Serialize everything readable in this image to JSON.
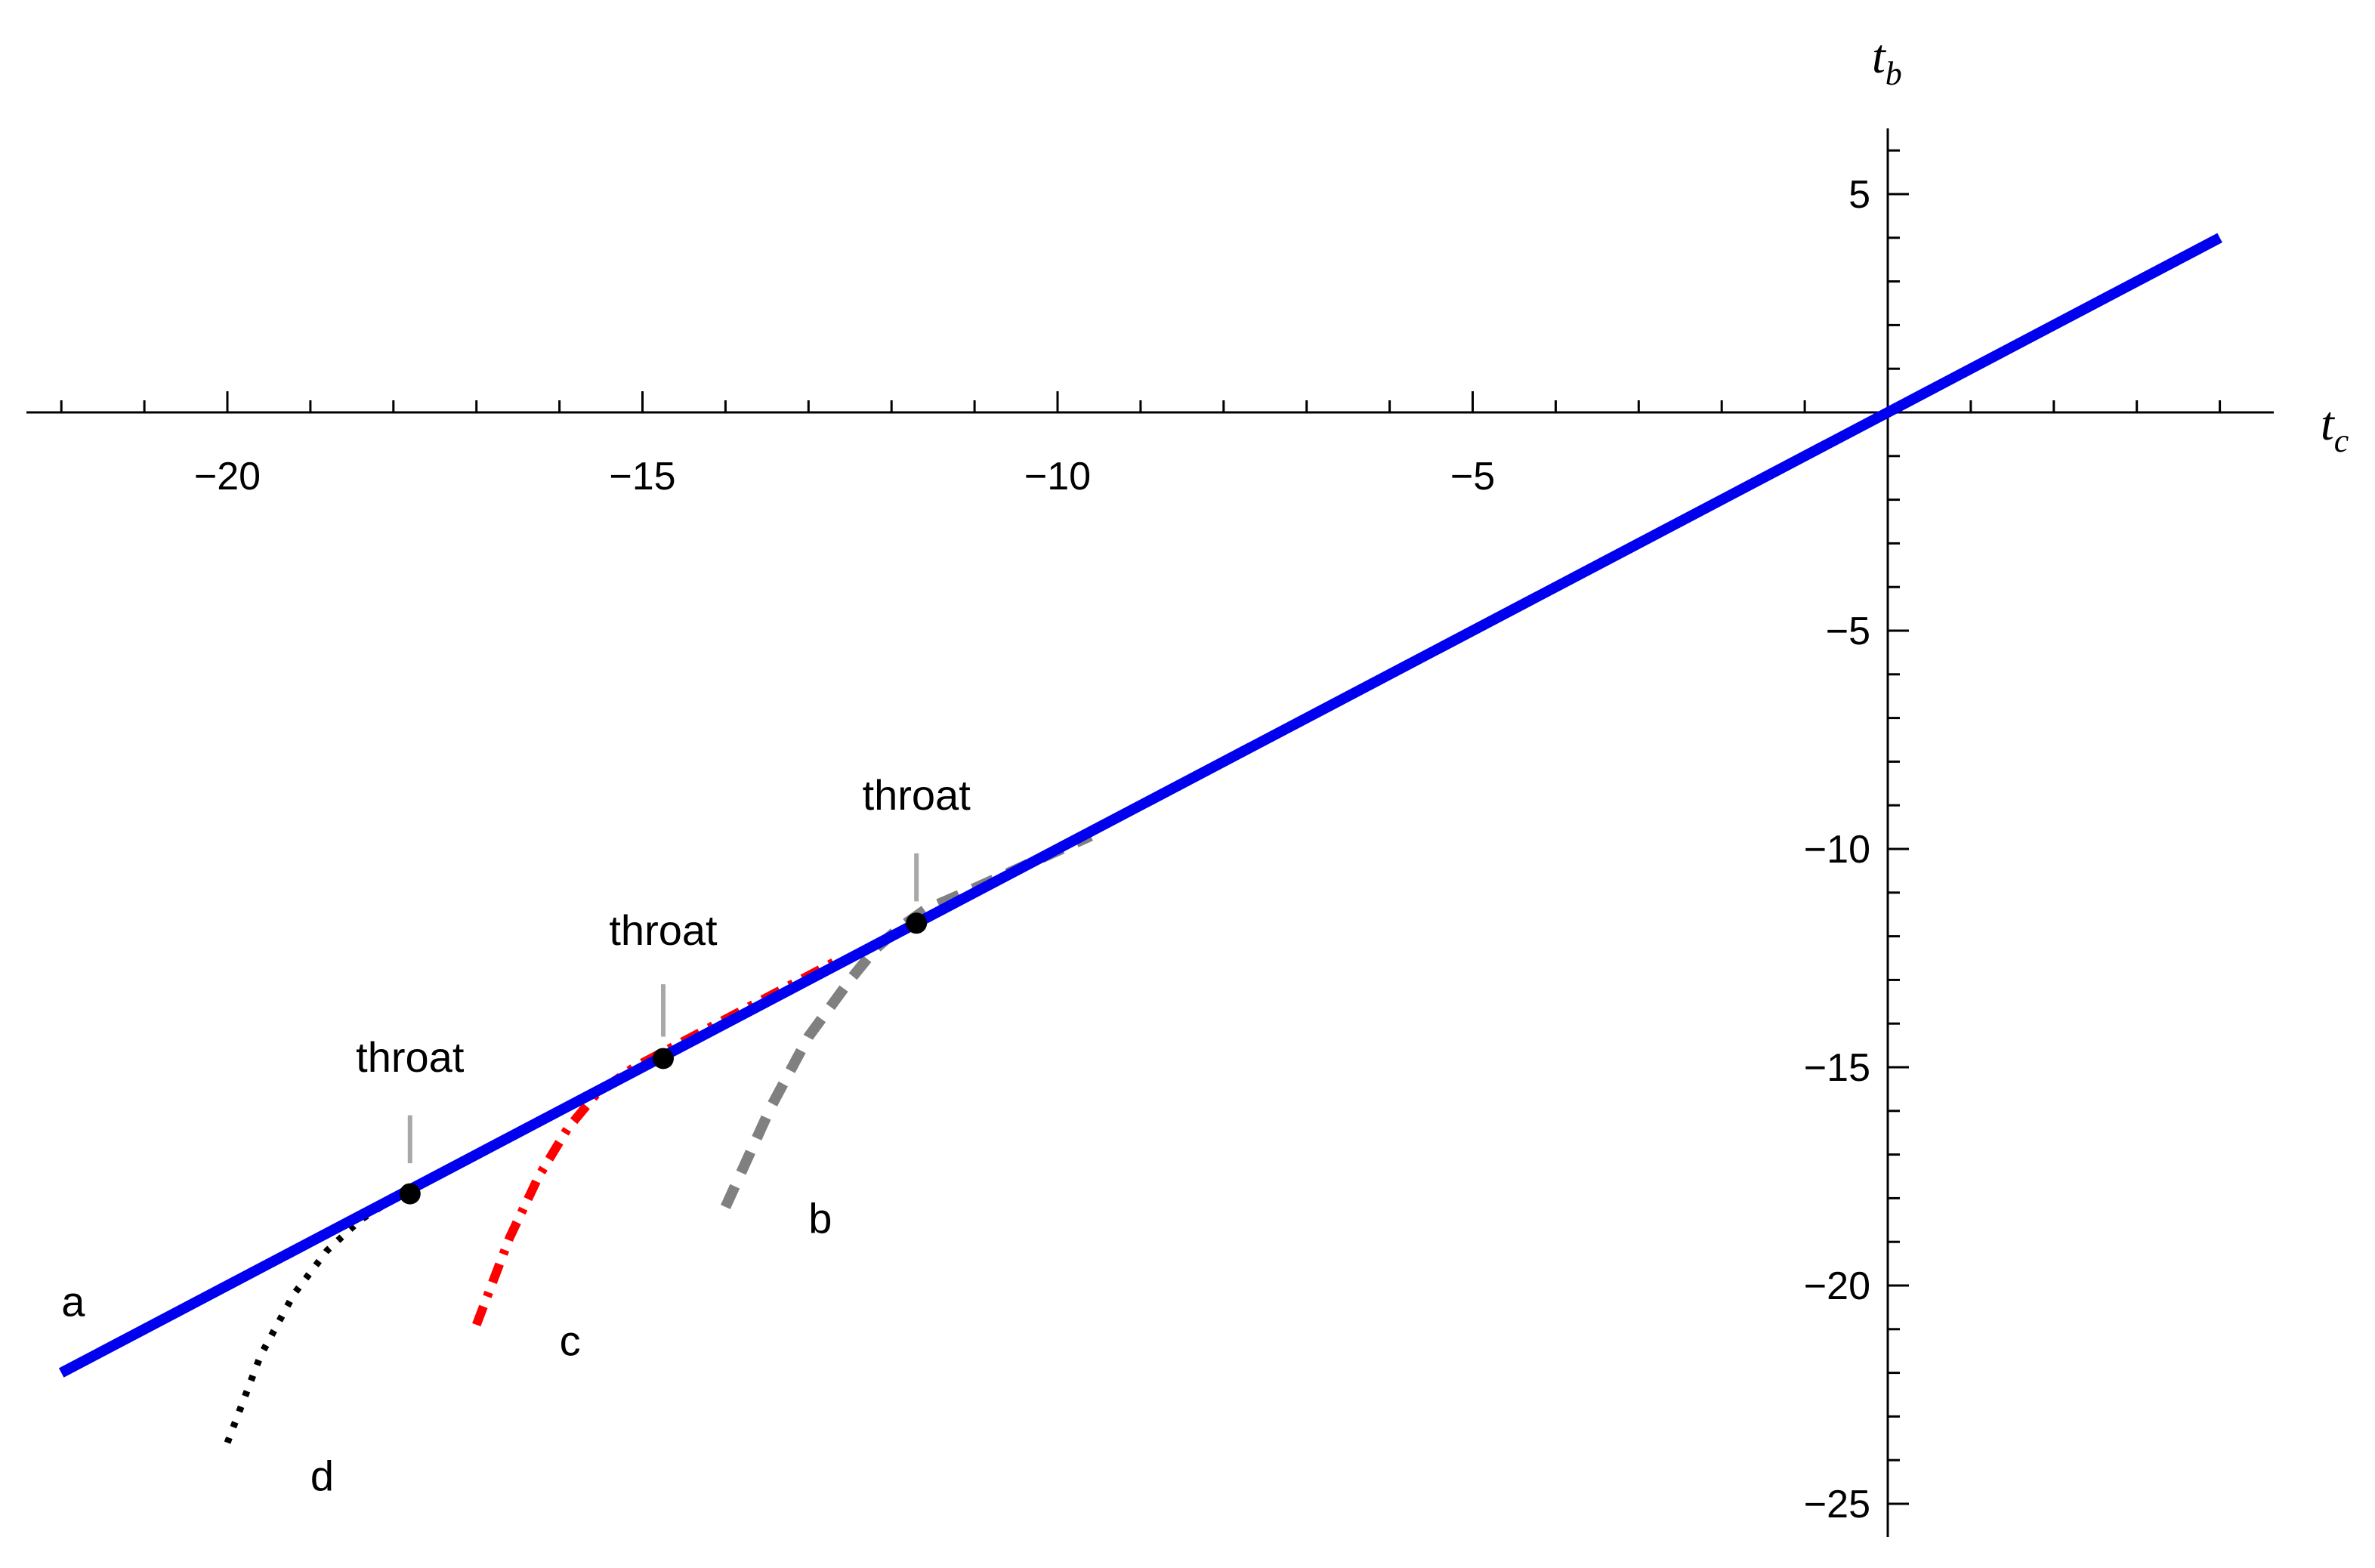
{
  "chart_data": {
    "type": "line",
    "title": "",
    "xlabel": {
      "main": "t",
      "sub": "c"
    },
    "ylabel": {
      "main": "t",
      "sub": "b"
    },
    "xlim": [
      -22.5,
      4.6
    ],
    "ylim": [
      -25.4,
      6.6
    ],
    "x_ticks": [
      -20,
      -15,
      -10,
      -5
    ],
    "x_tick_labels": [
      "−20",
      "−15",
      "−10",
      "−5"
    ],
    "y_ticks": [
      5,
      -5,
      -10,
      -15,
      -20,
      -25
    ],
    "y_tick_labels": [
      "5",
      "−5",
      "−10",
      "−15",
      "−20",
      "−25"
    ],
    "minor_step": 1,
    "grid": false,
    "colors": {
      "a": "#0000ee",
      "b": "#808080",
      "c": "#ff0000",
      "d": "#000000",
      "marker": "#000000",
      "pointer": "#a8a8a8"
    },
    "series": [
      {
        "name": "a",
        "style": "solid",
        "x": [
          -22,
          4
        ],
        "y": [
          -22,
          4
        ]
      },
      {
        "name": "b",
        "style": "dashed",
        "x": [
          -14,
          -13.45,
          -13,
          -12.5,
          -12.2,
          -11.9,
          -11.6,
          -11,
          -10.3,
          -9.6
        ],
        "y": [
          -18.2,
          -15.9,
          -14.3,
          -13.0,
          -12.3,
          -11.8,
          -11.4,
          -10.9,
          -10.3,
          -9.7
        ]
      },
      {
        "name": "c",
        "style": "dashdot",
        "x": [
          -17,
          -16.6,
          -16.25,
          -15.9,
          -15.55,
          -15.1,
          -14.6,
          -14,
          -13.3,
          -12.6
        ],
        "y": [
          -20.9,
          -18.9,
          -17.5,
          -16.4,
          -15.6,
          -15.0,
          -14.5,
          -13.9,
          -13.2,
          -12.5
        ]
      },
      {
        "name": "d",
        "style": "dotted",
        "x": [
          -20,
          -19.6,
          -19.2,
          -18.8,
          -18.4,
          -17.9,
          -17.3,
          -16.7,
          -16.1,
          -15.6
        ],
        "y": [
          -23.6,
          -21.6,
          -20.2,
          -19.2,
          -18.5,
          -17.9,
          -17.3,
          -16.7,
          -16.1,
          -15.6
        ]
      }
    ],
    "points": [
      {
        "x": -17.8,
        "y": -17.9
      },
      {
        "x": -14.75,
        "y": -14.8
      },
      {
        "x": -11.7,
        "y": -11.7
      }
    ],
    "annotations": [
      {
        "text": "throat",
        "x": -17.8,
        "y": -15.1,
        "pointer_top": -16.1,
        "pointer_bottom": -17.2
      },
      {
        "text": "throat",
        "x": -14.75,
        "y": -12.2,
        "pointer_top": -13.1,
        "pointer_bottom": -14.3
      },
      {
        "text": "throat",
        "x": -11.7,
        "y": -9.1,
        "pointer_top": -10.1,
        "pointer_bottom": -11.2
      },
      {
        "text": "a",
        "x": -22.0,
        "y": -20.7
      },
      {
        "text": "b",
        "x": -13.0,
        "y": -18.8
      },
      {
        "text": "c",
        "x": -16.0,
        "y": -21.6
      },
      {
        "text": "d",
        "x": -19.0,
        "y": -24.7
      }
    ]
  }
}
